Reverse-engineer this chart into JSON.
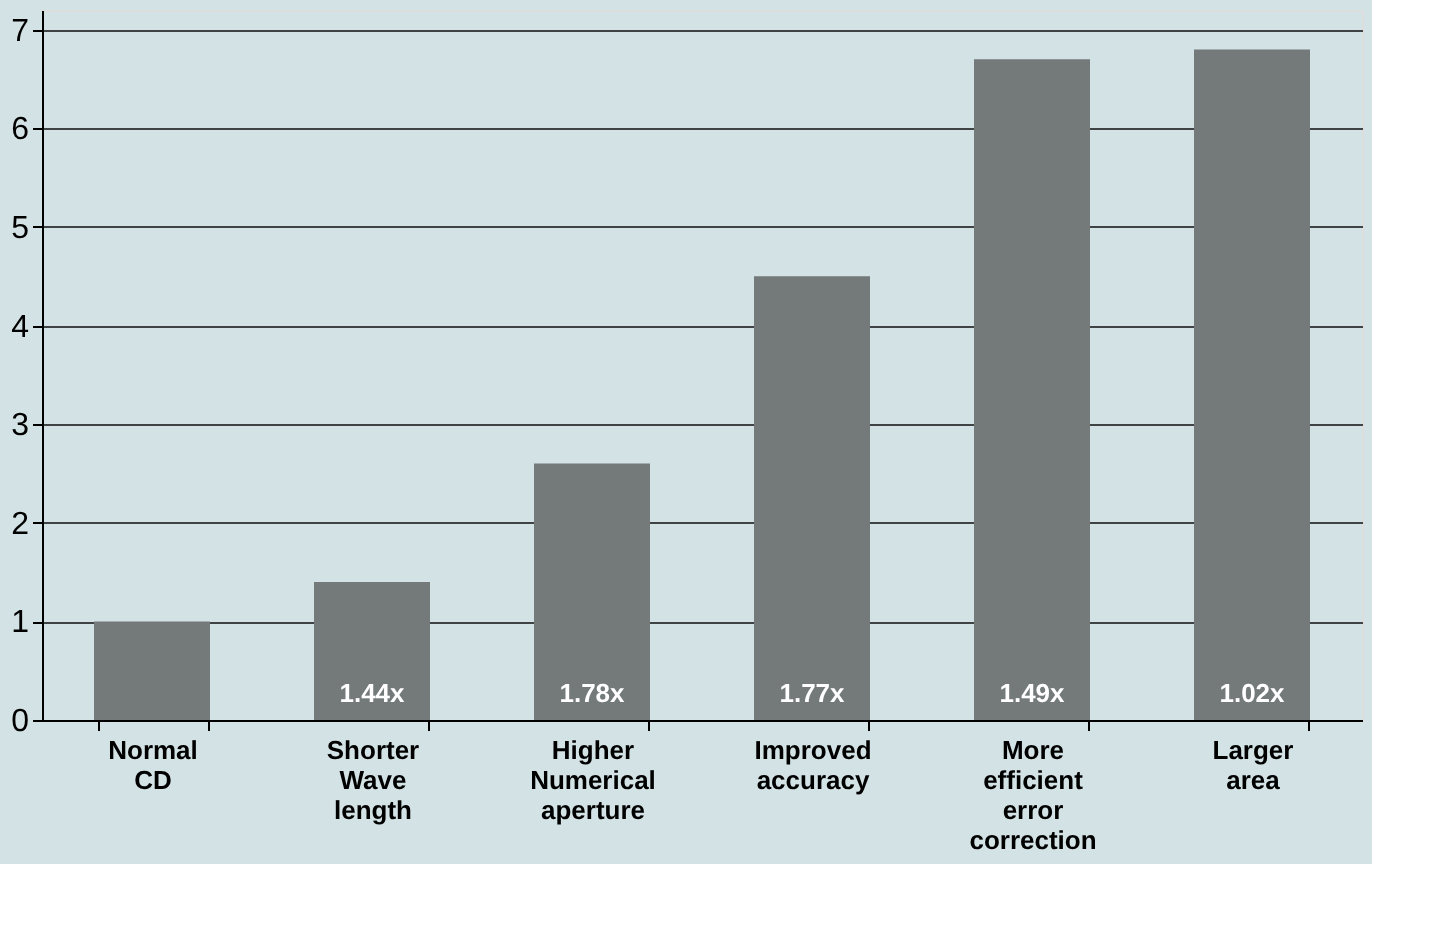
{
  "chart_data": {
    "type": "bar",
    "categories": [
      "Normal\nCD",
      "Shorter\nWave\nlength",
      "Higher\nNumerical\naperture",
      "Improved\naccuracy",
      "More\nefficient\nerror\ncorrection",
      "Larger\narea"
    ],
    "values": [
      1.0,
      1.4,
      2.6,
      4.5,
      6.7,
      6.8
    ],
    "color": "#74797a",
    "ylim": [
      0,
      7.2
    ],
    "yticks": [
      0,
      1,
      2,
      3,
      4,
      5,
      6,
      7
    ],
    "grid": "y",
    "annotations": [
      "1.44x",
      "1.78x",
      "1.77x",
      "1.49x",
      "1.02x"
    ]
  }
}
